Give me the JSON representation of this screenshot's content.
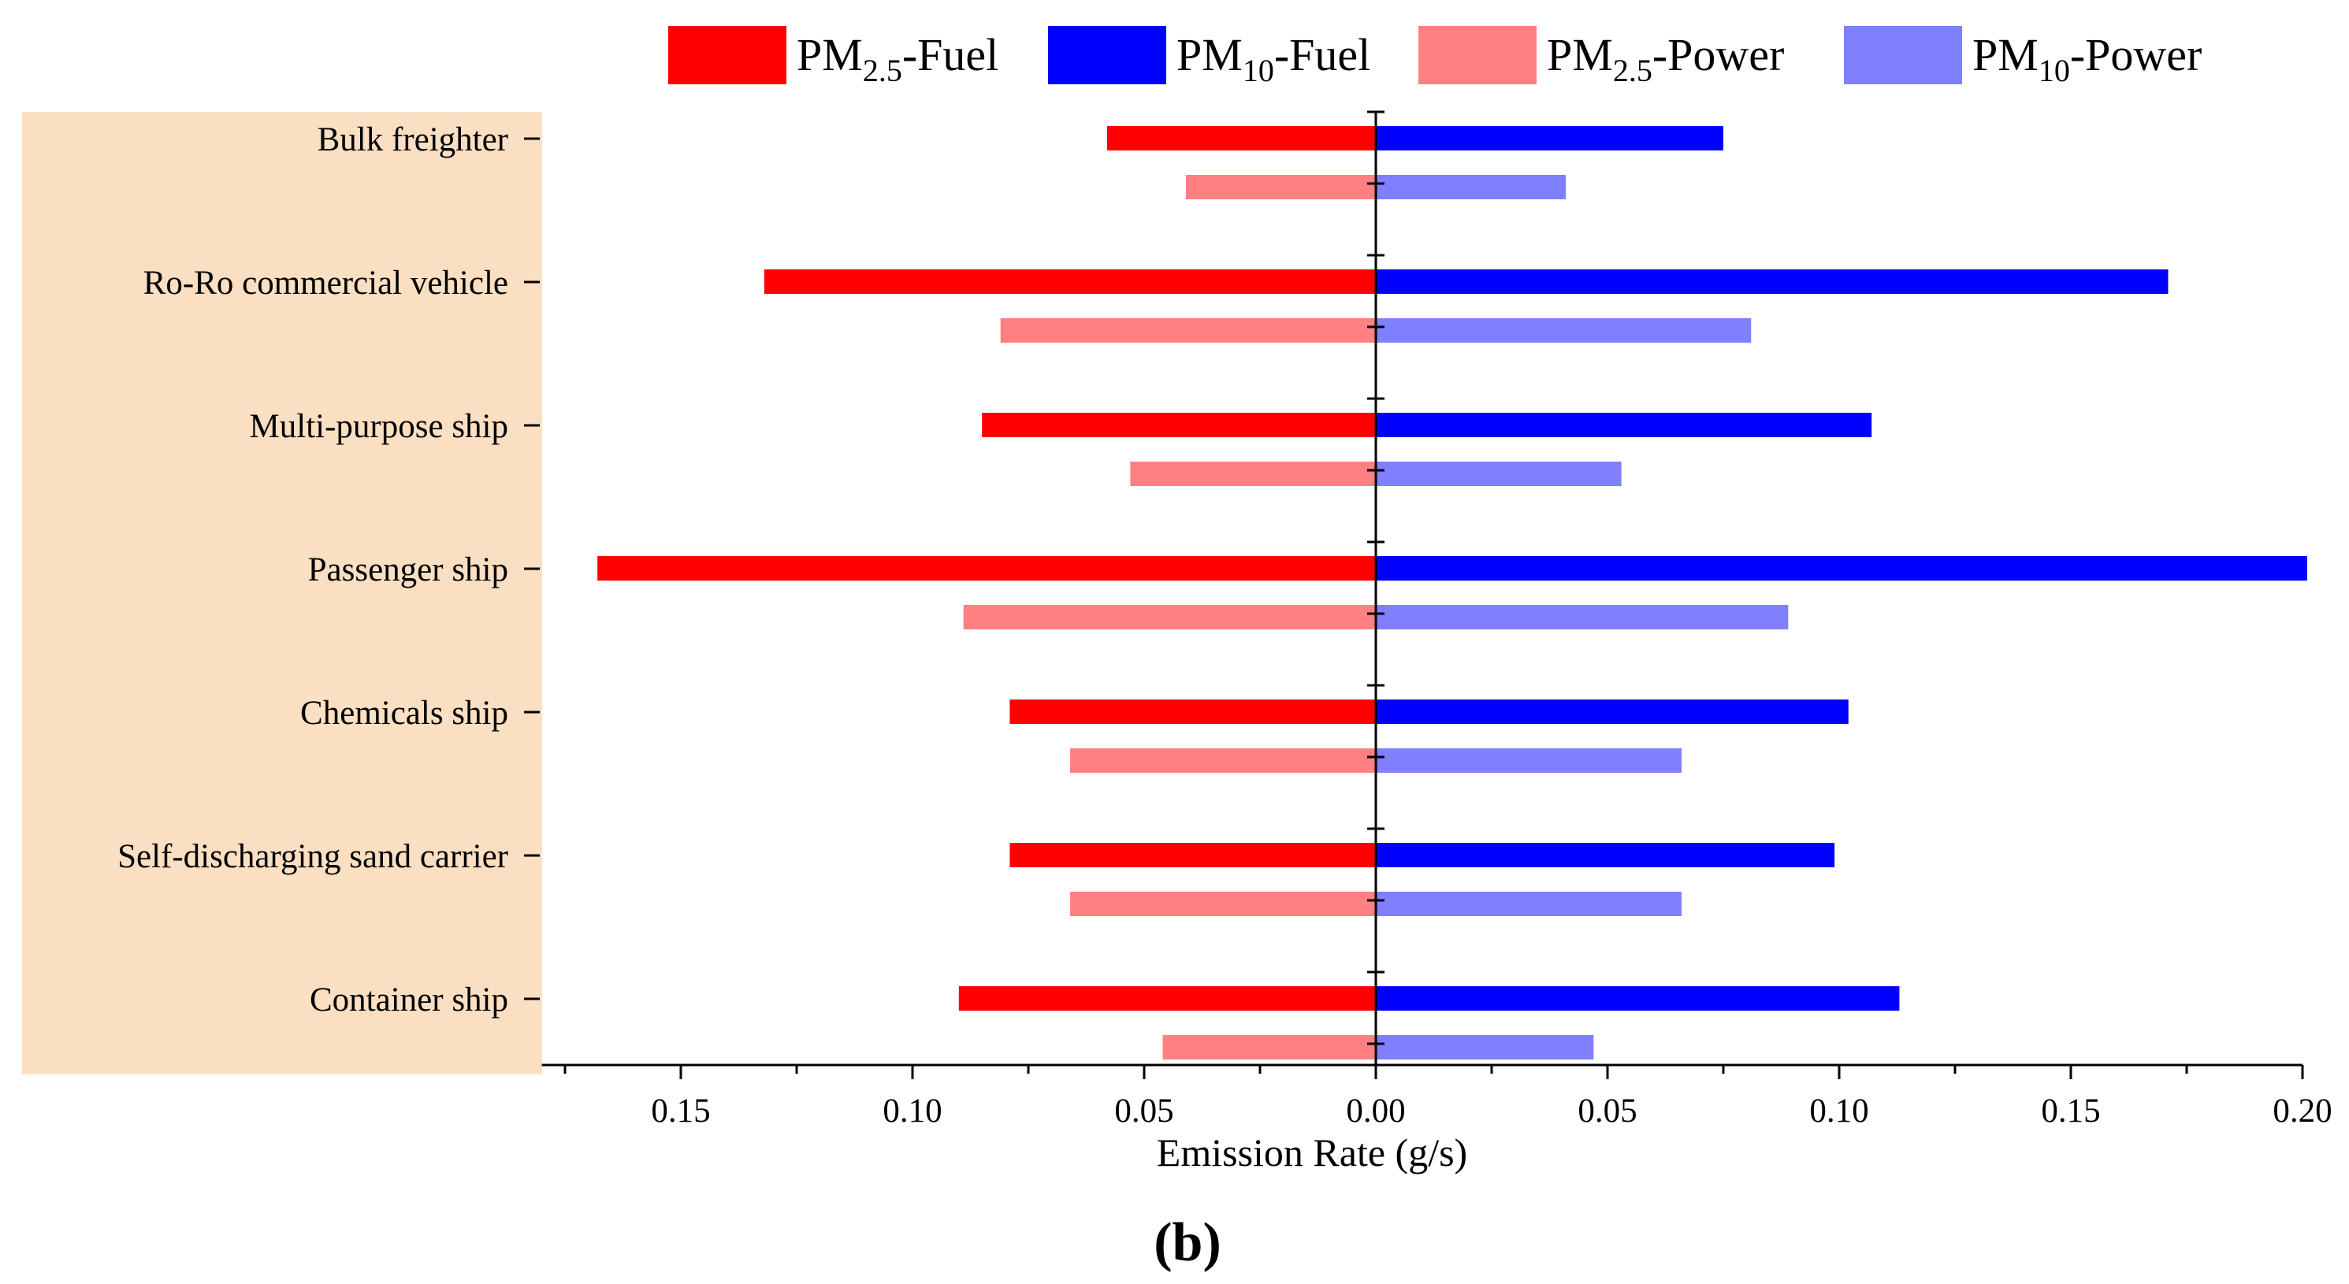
{
  "chart_data": {
    "type": "bar",
    "orientation": "horizontal-diverging",
    "categories": [
      "Bulk freighter",
      "Ro-Ro commercial vehicle",
      "Multi-purpose ship",
      "Passenger ship",
      "Chemicals ship",
      "Self-discharging sand carrier",
      "Container ship"
    ],
    "series": [
      {
        "name": "PM2.5-Fuel",
        "label_main": "PM",
        "label_sub": "2.5",
        "label_tail": "-Fuel",
        "side": "left",
        "color": "#ff0000",
        "values": [
          0.058,
          0.132,
          0.085,
          0.168,
          0.079,
          0.079,
          0.09
        ]
      },
      {
        "name": "PM2.5-Power",
        "label_main": "PM",
        "label_sub": "2.5",
        "label_tail": "-Power",
        "side": "left",
        "color": "#ff8080",
        "values": [
          0.041,
          0.081,
          0.053,
          0.089,
          0.066,
          0.066,
          0.046
        ]
      },
      {
        "name": "PM10-Fuel",
        "label_main": "PM",
        "label_sub": "10",
        "label_tail": "-Fuel",
        "side": "right",
        "color": "#0000ff",
        "values": [
          0.075,
          0.171,
          0.107,
          0.201,
          0.102,
          0.099,
          0.113
        ]
      },
      {
        "name": "PM10-Power",
        "label_main": "PM",
        "label_sub": "10",
        "label_tail": "-Power",
        "side": "right",
        "color": "#8080ff",
        "values": [
          0.041,
          0.081,
          0.053,
          0.089,
          0.066,
          0.066,
          0.047
        ]
      }
    ],
    "legend_order": [
      0,
      2,
      1,
      3
    ],
    "xlim": [
      -0.18,
      0.2
    ],
    "xticks": [
      -0.15,
      -0.1,
      -0.05,
      0.0,
      0.05,
      0.1,
      0.15,
      0.2
    ],
    "xtick_labels": [
      "0.15",
      "0.10",
      "0.05",
      "0.00",
      "0.05",
      "0.10",
      "0.15",
      "0.20"
    ],
    "xlabel": "Emission Rate (g/s)",
    "panel_label": "(b)",
    "legend_position": "top",
    "label_panel_color": "#fbdfc2"
  }
}
